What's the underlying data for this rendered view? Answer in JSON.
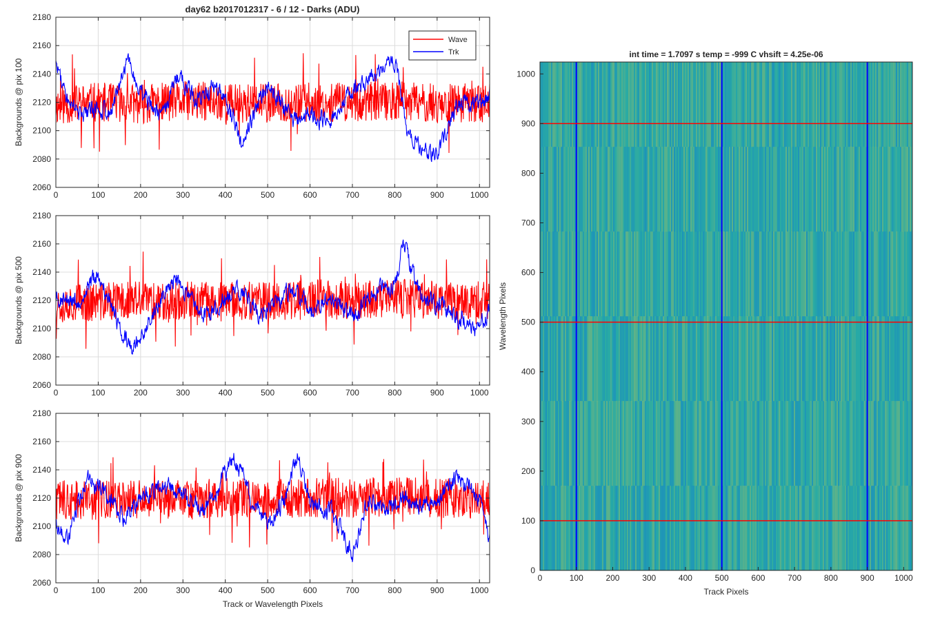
{
  "figure": {
    "title": "day62 b2017012317 - 6 / 12 - Darks (ADU)"
  },
  "chart_data": [
    {
      "type": "line",
      "panel": "top",
      "xlabel": "",
      "ylabel": "Backgrounds @ pix 100",
      "xlim": [
        0,
        1024
      ],
      "ylim": [
        2060,
        2180
      ],
      "xticks": [
        0,
        100,
        200,
        300,
        400,
        500,
        600,
        700,
        800,
        900,
        1000
      ],
      "yticks": [
        2060,
        2080,
        2100,
        2120,
        2140,
        2160,
        2180
      ],
      "grid": true,
      "legend": "top-right",
      "series": [
        {
          "name": "Wave",
          "color": "#ff0000",
          "profile_x": [
            0,
            100,
            200,
            300,
            400,
            500,
            600,
            700,
            800,
            900,
            1024
          ],
          "profile_y": [
            2118,
            2120,
            2119,
            2121,
            2120,
            2119,
            2120,
            2120,
            2121,
            2119,
            2120
          ],
          "noise_amp": 14,
          "min": 2066,
          "max": 2166
        },
        {
          "name": "Trk",
          "color": "#0000ff",
          "profile_x": [
            0,
            20,
            60,
            100,
            130,
            170,
            200,
            250,
            290,
            330,
            380,
            420,
            440,
            470,
            500,
            560,
            600,
            640,
            700,
            760,
            800,
            830,
            860,
            900,
            950,
            1000,
            1024
          ],
          "profile_y": [
            2148,
            2128,
            2110,
            2115,
            2112,
            2150,
            2125,
            2110,
            2140,
            2120,
            2132,
            2108,
            2088,
            2115,
            2132,
            2108,
            2112,
            2105,
            2128,
            2140,
            2150,
            2100,
            2090,
            2082,
            2118,
            2120,
            2125
          ],
          "noise_amp": 5,
          "min": 2066,
          "max": 2160
        }
      ]
    },
    {
      "type": "line",
      "panel": "middle",
      "xlabel": "",
      "ylabel": "Backgrounds @ pix 500",
      "xlim": [
        0,
        1024
      ],
      "ylim": [
        2060,
        2180
      ],
      "xticks": [
        0,
        100,
        200,
        300,
        400,
        500,
        600,
        700,
        800,
        900,
        1000
      ],
      "yticks": [
        2060,
        2080,
        2100,
        2120,
        2140,
        2160,
        2180
      ],
      "grid": true,
      "series": [
        {
          "name": "Wave",
          "color": "#ff0000",
          "profile_x": [
            0,
            200,
            400,
            600,
            800,
            1024
          ],
          "profile_y": [
            2118,
            2120,
            2119,
            2120,
            2121,
            2120
          ],
          "noise_amp": 14,
          "min": 2065,
          "max": 2156
        },
        {
          "name": "Trk",
          "color": "#0000ff",
          "profile_x": [
            0,
            50,
            100,
            150,
            180,
            230,
            280,
            320,
            360,
            400,
            440,
            480,
            520,
            560,
            600,
            650,
            700,
            750,
            800,
            820,
            860,
            900,
            950,
            1000,
            1024
          ],
          "profile_y": [
            2122,
            2118,
            2140,
            2100,
            2085,
            2112,
            2135,
            2120,
            2108,
            2122,
            2128,
            2110,
            2118,
            2130,
            2112,
            2122,
            2108,
            2125,
            2130,
            2160,
            2122,
            2118,
            2108,
            2100,
            2115
          ],
          "noise_amp": 5,
          "min": 2082,
          "max": 2163
        }
      ]
    },
    {
      "type": "line",
      "panel": "bottom",
      "xlabel": "Track or Wavelength Pixels",
      "ylabel": "Backgrounds @ pix 900",
      "xlim": [
        0,
        1024
      ],
      "ylim": [
        2060,
        2180
      ],
      "xticks": [
        0,
        100,
        200,
        300,
        400,
        500,
        600,
        700,
        800,
        900,
        1000
      ],
      "yticks": [
        2060,
        2080,
        2100,
        2120,
        2140,
        2160,
        2180
      ],
      "grid": true,
      "series": [
        {
          "name": "Wave",
          "color": "#ff0000",
          "profile_x": [
            0,
            200,
            400,
            600,
            800,
            1024
          ],
          "profile_y": [
            2118,
            2119,
            2120,
            2120,
            2121,
            2119
          ],
          "noise_amp": 14,
          "min": 2072,
          "max": 2160
        },
        {
          "name": "Trk",
          "color": "#0000ff",
          "profile_x": [
            0,
            30,
            70,
            120,
            160,
            200,
            250,
            300,
            350,
            380,
            420,
            460,
            500,
            540,
            570,
            600,
            650,
            700,
            740,
            780,
            820,
            860,
            900,
            950,
            1000,
            1024
          ],
          "profile_y": [
            2100,
            2090,
            2135,
            2125,
            2105,
            2120,
            2130,
            2122,
            2110,
            2125,
            2150,
            2120,
            2100,
            2118,
            2152,
            2118,
            2110,
            2080,
            2122,
            2110,
            2120,
            2115,
            2120,
            2135,
            2120,
            2090
          ],
          "noise_amp": 5,
          "min": 2070,
          "max": 2161
        }
      ]
    },
    {
      "type": "heatmap",
      "panel": "right",
      "title": "int time = 1.7097 s   temp = -999 C   vhsift = 4.25e-06",
      "xlabel": "Track Pixels",
      "ylabel": "Wavelength Pixels",
      "xlim": [
        0,
        1024
      ],
      "ylim": [
        0,
        1024
      ],
      "xticks": [
        0,
        100,
        200,
        300,
        400,
        500,
        600,
        700,
        800,
        900,
        1000
      ],
      "yticks": [
        0,
        100,
        200,
        300,
        400,
        500,
        600,
        700,
        800,
        900,
        1000
      ],
      "colormap": "parula",
      "value_range": [
        2060,
        2180
      ],
      "typical_value": 2120,
      "marker_columns": {
        "x": [
          100,
          500,
          900
        ],
        "color": "#0000ff"
      },
      "marker_rows": {
        "y": [
          100,
          500,
          900
        ],
        "color": "#ff0000"
      }
    }
  ]
}
